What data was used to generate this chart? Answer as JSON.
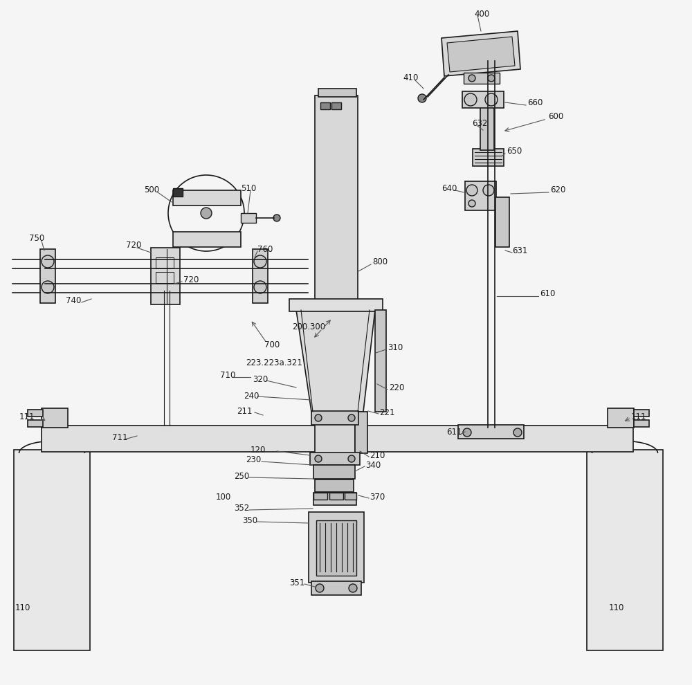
{
  "bg_color": "#f5f5f5",
  "line_color": "#1a1a1a",
  "light_line": "#555555",
  "figsize": [
    10.0,
    9.9
  ],
  "dpi": 100
}
